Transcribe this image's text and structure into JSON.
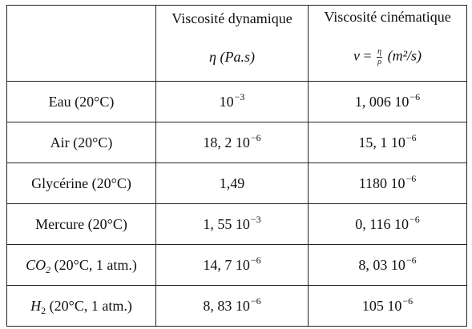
{
  "table": {
    "header": {
      "dynamic_title": "Viscosité dynamique",
      "dynamic_symbol": "η",
      "dynamic_unit": "(Pa.s)",
      "kinematic_title": "Viscosité cinématique",
      "kinematic_symbol": "ν",
      "kinematic_equals": "=",
      "kinematic_frac_num": "η",
      "kinematic_frac_den": "ρ",
      "kinematic_unit": "(m²/s)"
    },
    "rows": [
      {
        "substance": "Eau (20°C)",
        "dyn_mant": "10",
        "dyn_exp": "−3",
        "kin_mant": "1, 006 10",
        "kin_exp": "−6"
      },
      {
        "substance": "Air (20°C)",
        "dyn_mant": "18, 2 10",
        "dyn_exp": "−6",
        "kin_mant": "15, 1 10",
        "kin_exp": "−6"
      },
      {
        "substance": "Glycérine (20°C)",
        "dyn_mant": "1,49",
        "dyn_exp": "",
        "kin_mant": "1180 10",
        "kin_exp": "−6"
      },
      {
        "substance": "Mercure (20°C)",
        "dyn_mant": "1, 55 10",
        "dyn_exp": "−3",
        "kin_mant": "0, 116 10",
        "kin_exp": "−6"
      },
      {
        "substance_formula": "CO",
        "substance_sub": "2",
        "substance_rest": " (20°C, 1  atm.)",
        "dyn_mant": "14, 7 10",
        "dyn_exp": "−6",
        "kin_mant": "8, 03 10",
        "kin_exp": "−6"
      },
      {
        "substance_formula": "H",
        "substance_sub": "2",
        "substance_rest": " (20°C, 1  atm.)",
        "dyn_mant": "8, 83 10",
        "dyn_exp": "−6",
        "kin_mant": "105 10",
        "kin_exp": "−6"
      }
    ]
  }
}
